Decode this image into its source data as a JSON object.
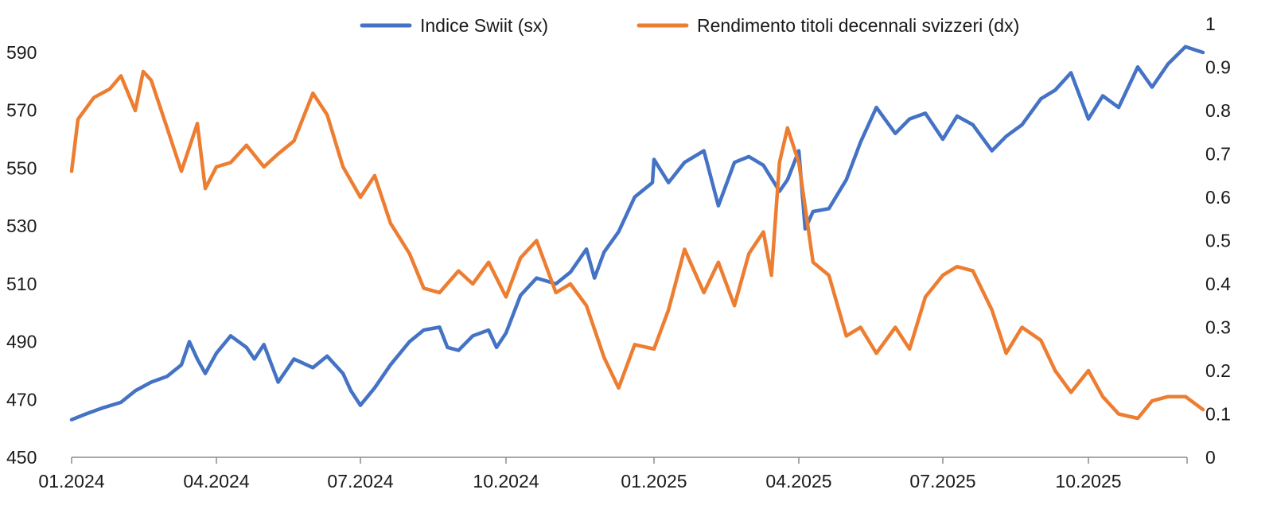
{
  "chart_data": {
    "type": "line",
    "title": "",
    "xlabel": "",
    "x_ticks": [
      "01.2024",
      "04.2024",
      "07.2024",
      "10.2024",
      "01.2025",
      "04.2025",
      "07.2025",
      "10.2025"
    ],
    "x_range": [
      "2024-01-01",
      "2025-12-12"
    ],
    "y_left": {
      "min": 450,
      "max": 590,
      "ticks": [
        450,
        470,
        490,
        510,
        530,
        550,
        570,
        590
      ]
    },
    "y_right": {
      "min": 0,
      "max": 1,
      "ticks": [
        0,
        0.1,
        0.2,
        0.3,
        0.4,
        0.5,
        0.6,
        0.7,
        0.8,
        0.9,
        1
      ]
    },
    "grid": false,
    "legend_position": "top",
    "series": [
      {
        "name": "Indice Swiit (sx)",
        "axis": "left",
        "color": "#4472C4",
        "points": [
          [
            "2024-01-01",
            463
          ],
          [
            "2024-01-10",
            465
          ],
          [
            "2024-01-20",
            467
          ],
          [
            "2024-02-01",
            469
          ],
          [
            "2024-02-10",
            473
          ],
          [
            "2024-02-20",
            476
          ],
          [
            "2024-03-01",
            478
          ],
          [
            "2024-03-10",
            482
          ],
          [
            "2024-03-15",
            490
          ],
          [
            "2024-03-20",
            484
          ],
          [
            "2024-03-25",
            479
          ],
          [
            "2024-04-01",
            486
          ],
          [
            "2024-04-10",
            492
          ],
          [
            "2024-04-20",
            488
          ],
          [
            "2024-04-25",
            484
          ],
          [
            "2024-05-01",
            489
          ],
          [
            "2024-05-10",
            476
          ],
          [
            "2024-05-20",
            484
          ],
          [
            "2024-06-01",
            481
          ],
          [
            "2024-06-10",
            485
          ],
          [
            "2024-06-20",
            479
          ],
          [
            "2024-06-25",
            473
          ],
          [
            "2024-07-01",
            468
          ],
          [
            "2024-07-10",
            474
          ],
          [
            "2024-07-20",
            482
          ],
          [
            "2024-08-01",
            490
          ],
          [
            "2024-08-10",
            494
          ],
          [
            "2024-08-20",
            495
          ],
          [
            "2024-08-25",
            488
          ],
          [
            "2024-09-01",
            487
          ],
          [
            "2024-09-10",
            492
          ],
          [
            "2024-09-20",
            494
          ],
          [
            "2024-09-25",
            488
          ],
          [
            "2024-10-01",
            493
          ],
          [
            "2024-10-10",
            506
          ],
          [
            "2024-10-20",
            512
          ],
          [
            "2024-11-01",
            510
          ],
          [
            "2024-11-10",
            514
          ],
          [
            "2024-11-20",
            522
          ],
          [
            "2024-11-25",
            512
          ],
          [
            "2024-12-01",
            521
          ],
          [
            "2024-12-10",
            528
          ],
          [
            "2024-12-20",
            540
          ],
          [
            "2024-12-31",
            545
          ],
          [
            "2025-01-01",
            553
          ],
          [
            "2025-01-10",
            545
          ],
          [
            "2025-01-20",
            552
          ],
          [
            "2025-02-01",
            556
          ],
          [
            "2025-02-10",
            537
          ],
          [
            "2025-02-20",
            552
          ],
          [
            "2025-03-01",
            554
          ],
          [
            "2025-03-10",
            551
          ],
          [
            "2025-03-20",
            542
          ],
          [
            "2025-03-25",
            546
          ],
          [
            "2025-04-01",
            556
          ],
          [
            "2025-04-05",
            529
          ],
          [
            "2025-04-10",
            535
          ],
          [
            "2025-04-20",
            536
          ],
          [
            "2025-05-01",
            546
          ],
          [
            "2025-05-10",
            559
          ],
          [
            "2025-05-20",
            571
          ],
          [
            "2025-06-01",
            562
          ],
          [
            "2025-06-10",
            567
          ],
          [
            "2025-06-20",
            569
          ],
          [
            "2025-07-01",
            560
          ],
          [
            "2025-07-10",
            568
          ],
          [
            "2025-07-20",
            565
          ],
          [
            "2025-08-01",
            556
          ],
          [
            "2025-08-10",
            561
          ],
          [
            "2025-08-20",
            565
          ],
          [
            "2025-09-01",
            574
          ],
          [
            "2025-09-10",
            577
          ],
          [
            "2025-09-20",
            583
          ],
          [
            "2025-10-01",
            567
          ],
          [
            "2025-10-10",
            575
          ],
          [
            "2025-10-20",
            571
          ],
          [
            "2025-11-01",
            585
          ],
          [
            "2025-11-10",
            578
          ],
          [
            "2025-11-20",
            586
          ],
          [
            "2025-12-01",
            592
          ],
          [
            "2025-12-12",
            590
          ]
        ]
      },
      {
        "name": "Rendimento titoli decennali svizzeri (dx)",
        "axis": "right",
        "color": "#ED7D31",
        "points": [
          [
            "2024-01-01",
            0.66
          ],
          [
            "2024-01-05",
            0.78
          ],
          [
            "2024-01-15",
            0.83
          ],
          [
            "2024-01-25",
            0.85
          ],
          [
            "2024-02-01",
            0.88
          ],
          [
            "2024-02-10",
            0.8
          ],
          [
            "2024-02-15",
            0.89
          ],
          [
            "2024-02-20",
            0.87
          ],
          [
            "2024-03-01",
            0.76
          ],
          [
            "2024-03-10",
            0.66
          ],
          [
            "2024-03-20",
            0.77
          ],
          [
            "2024-03-25",
            0.62
          ],
          [
            "2024-04-01",
            0.67
          ],
          [
            "2024-04-10",
            0.68
          ],
          [
            "2024-04-20",
            0.72
          ],
          [
            "2024-05-01",
            0.67
          ],
          [
            "2024-05-10",
            0.7
          ],
          [
            "2024-05-20",
            0.73
          ],
          [
            "2024-06-01",
            0.84
          ],
          [
            "2024-06-10",
            0.79
          ],
          [
            "2024-06-20",
            0.67
          ],
          [
            "2024-07-01",
            0.6
          ],
          [
            "2024-07-10",
            0.65
          ],
          [
            "2024-07-20",
            0.54
          ],
          [
            "2024-08-01",
            0.47
          ],
          [
            "2024-08-10",
            0.39
          ],
          [
            "2024-08-20",
            0.38
          ],
          [
            "2024-09-01",
            0.43
          ],
          [
            "2024-09-10",
            0.4
          ],
          [
            "2024-09-20",
            0.45
          ],
          [
            "2024-10-01",
            0.37
          ],
          [
            "2024-10-10",
            0.46
          ],
          [
            "2024-10-20",
            0.5
          ],
          [
            "2024-11-01",
            0.38
          ],
          [
            "2024-11-10",
            0.4
          ],
          [
            "2024-11-20",
            0.35
          ],
          [
            "2024-12-01",
            0.23
          ],
          [
            "2024-12-10",
            0.16
          ],
          [
            "2024-12-20",
            0.26
          ],
          [
            "2025-01-01",
            0.25
          ],
          [
            "2025-01-10",
            0.34
          ],
          [
            "2025-01-20",
            0.48
          ],
          [
            "2025-02-01",
            0.38
          ],
          [
            "2025-02-10",
            0.45
          ],
          [
            "2025-02-20",
            0.35
          ],
          [
            "2025-03-01",
            0.47
          ],
          [
            "2025-03-10",
            0.52
          ],
          [
            "2025-03-15",
            0.42
          ],
          [
            "2025-03-20",
            0.68
          ],
          [
            "2025-03-25",
            0.76
          ],
          [
            "2025-04-01",
            0.68
          ],
          [
            "2025-04-10",
            0.45
          ],
          [
            "2025-04-20",
            0.42
          ],
          [
            "2025-05-01",
            0.28
          ],
          [
            "2025-05-10",
            0.3
          ],
          [
            "2025-05-20",
            0.24
          ],
          [
            "2025-06-01",
            0.3
          ],
          [
            "2025-06-10",
            0.25
          ],
          [
            "2025-06-20",
            0.37
          ],
          [
            "2025-07-01",
            0.42
          ],
          [
            "2025-07-10",
            0.44
          ],
          [
            "2025-07-20",
            0.43
          ],
          [
            "2025-08-01",
            0.34
          ],
          [
            "2025-08-10",
            0.24
          ],
          [
            "2025-08-20",
            0.3
          ],
          [
            "2025-09-01",
            0.27
          ],
          [
            "2025-09-10",
            0.2
          ],
          [
            "2025-09-20",
            0.15
          ],
          [
            "2025-10-01",
            0.2
          ],
          [
            "2025-10-10",
            0.14
          ],
          [
            "2025-10-20",
            0.1
          ],
          [
            "2025-11-01",
            0.09
          ],
          [
            "2025-11-10",
            0.13
          ],
          [
            "2025-11-20",
            0.14
          ],
          [
            "2025-12-01",
            0.14
          ],
          [
            "2025-12-12",
            0.11
          ]
        ]
      }
    ]
  }
}
